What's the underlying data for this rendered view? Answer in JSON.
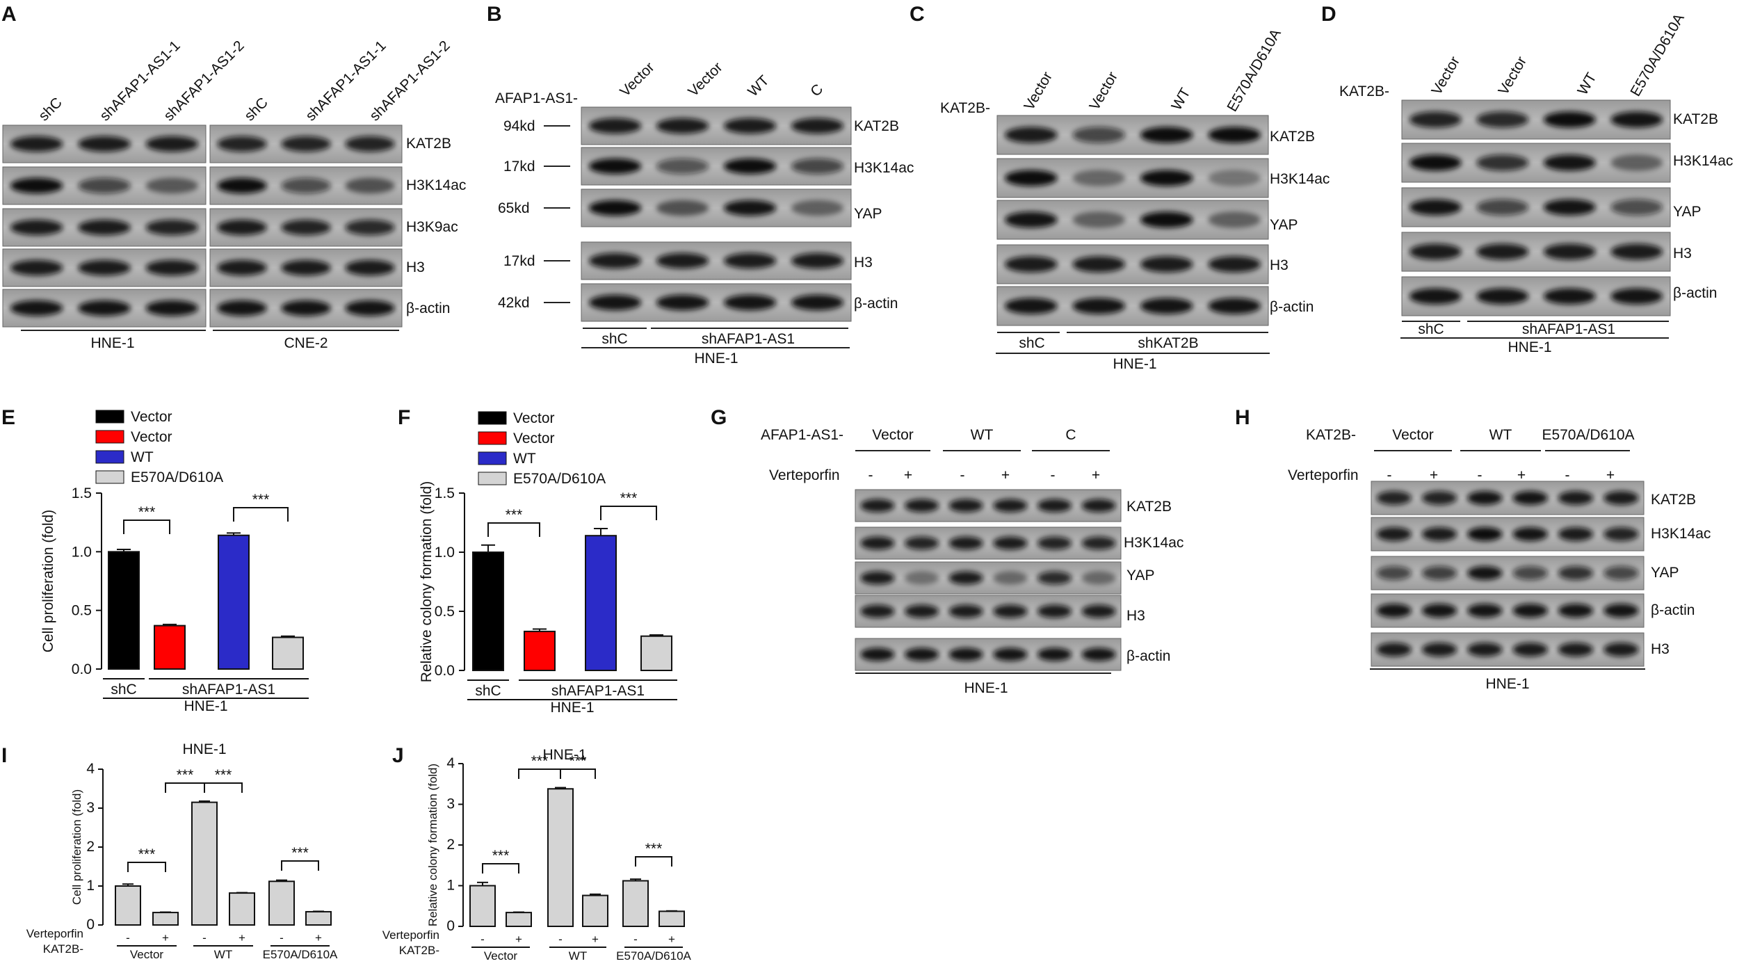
{
  "panel_letters": [
    "A",
    "B",
    "C",
    "D",
    "E",
    "F",
    "G",
    "H",
    "I",
    "J"
  ],
  "blots": {
    "A": {
      "lanes": [
        "shC",
        "shAFAP1-AS1-1",
        "shAFAP1-AS1-2",
        "shC",
        "shAFAP1-AS1-1",
        "shAFAP1-AS1-2"
      ],
      "rows": [
        {
          "label": "KAT2B",
          "intensity": [
            0.9,
            0.9,
            0.9,
            0.85,
            0.85,
            0.85
          ]
        },
        {
          "label": "H3K14ac",
          "intensity": [
            1.0,
            0.6,
            0.4,
            1.0,
            0.55,
            0.45
          ]
        },
        {
          "label": "H3K9ac",
          "intensity": [
            0.9,
            0.9,
            0.85,
            0.9,
            0.85,
            0.8
          ]
        },
        {
          "label": "H3",
          "intensity": [
            0.9,
            0.9,
            0.9,
            0.9,
            0.9,
            0.9
          ]
        },
        {
          "label": "β-actin",
          "intensity": [
            0.95,
            0.95,
            0.95,
            0.95,
            0.95,
            0.95
          ]
        }
      ],
      "groups": [
        "HNE-1",
        "CNE-2"
      ]
    },
    "B": {
      "prefix": "AFAP1-AS1-",
      "lanes": [
        "Vector",
        "Vector",
        "WT",
        "C"
      ],
      "markers": [
        "94kd",
        "17kd",
        "65kd",
        "17kd",
        "42kd"
      ],
      "rows": [
        {
          "label": "KAT2B",
          "intensity": [
            0.9,
            0.9,
            0.9,
            0.9
          ]
        },
        {
          "label": "H3K14ac",
          "intensity": [
            1.0,
            0.5,
            1.0,
            0.6
          ]
        },
        {
          "label": "YAP",
          "intensity": [
            1.0,
            0.45,
            0.95,
            0.35
          ]
        },
        {
          "label": "H3",
          "intensity": [
            0.9,
            0.9,
            0.9,
            0.9
          ]
        },
        {
          "label": "β-actin",
          "intensity": [
            0.95,
            0.95,
            0.95,
            0.95
          ]
        }
      ],
      "group_a": "shC",
      "group_b": "shAFAP1-AS1",
      "cell": "HNE-1"
    },
    "C": {
      "prefix": "KAT2B-",
      "lanes": [
        "Vector",
        "Vector",
        "WT",
        "E570A/D610A"
      ],
      "rows": [
        {
          "label": "KAT2B",
          "intensity": [
            0.9,
            0.6,
            1.0,
            1.0
          ]
        },
        {
          "label": "H3K14ac",
          "intensity": [
            1.0,
            0.3,
            1.0,
            0.2
          ]
        },
        {
          "label": "YAP",
          "intensity": [
            0.95,
            0.35,
            1.0,
            0.35
          ]
        },
        {
          "label": "H3",
          "intensity": [
            0.9,
            0.9,
            0.9,
            0.9
          ]
        },
        {
          "label": "β-actin",
          "intensity": [
            0.95,
            0.95,
            0.95,
            0.95
          ]
        }
      ],
      "group_a": "shC",
      "group_b": "shKAT2B",
      "cell": "HNE-1"
    },
    "D": {
      "prefix": "KAT2B-",
      "lanes": [
        "Vector",
        "Vector",
        "WT",
        "E570A/D610A"
      ],
      "rows": [
        {
          "label": "KAT2B",
          "intensity": [
            0.85,
            0.8,
            1.0,
            0.95
          ]
        },
        {
          "label": "H3K14ac",
          "intensity": [
            1.0,
            0.75,
            0.95,
            0.35
          ]
        },
        {
          "label": "YAP",
          "intensity": [
            0.95,
            0.6,
            0.95,
            0.55
          ]
        },
        {
          "label": "H3",
          "intensity": [
            0.9,
            0.9,
            0.9,
            0.9
          ]
        },
        {
          "label": "β-actin",
          "intensity": [
            0.95,
            0.95,
            0.95,
            0.95
          ]
        }
      ],
      "group_a": "shC",
      "group_b": "shAFAP1-AS1",
      "cell": "HNE-1"
    },
    "G": {
      "prefix": "AFAP1-AS1-",
      "groups": [
        "Vector",
        "WT",
        "C"
      ],
      "treatment_label": "Verteporfin",
      "signs": [
        "-",
        "+",
        "-",
        "+",
        "-",
        "+"
      ],
      "rows": [
        {
          "label": "KAT2B",
          "intensity": [
            0.9,
            0.9,
            0.9,
            0.9,
            0.9,
            0.9
          ]
        },
        {
          "label": "H3K14ac",
          "intensity": [
            0.9,
            0.85,
            0.9,
            0.9,
            0.85,
            0.85
          ]
        },
        {
          "label": "YAP",
          "intensity": [
            0.9,
            0.25,
            0.9,
            0.3,
            0.8,
            0.3
          ]
        },
        {
          "label": "H3",
          "intensity": [
            0.9,
            0.9,
            0.9,
            0.9,
            0.9,
            0.9
          ]
        },
        {
          "label": "β-actin",
          "intensity": [
            0.95,
            0.95,
            0.95,
            0.95,
            0.95,
            0.95
          ]
        }
      ],
      "cell": "HNE-1"
    },
    "H": {
      "prefix": "KAT2B-",
      "groups": [
        "Vector",
        "WT",
        "E570A/D610A"
      ],
      "treatment_label": "Verteporfin",
      "signs": [
        "-",
        "+",
        "-",
        "+",
        "-",
        "+"
      ],
      "rows": [
        {
          "label": "KAT2B",
          "intensity": [
            0.85,
            0.85,
            0.95,
            0.95,
            0.9,
            0.9
          ]
        },
        {
          "label": "H3K14ac",
          "intensity": [
            0.9,
            0.9,
            1.0,
            0.95,
            0.9,
            0.85
          ]
        },
        {
          "label": "YAP",
          "intensity": [
            0.6,
            0.65,
            0.95,
            0.6,
            0.75,
            0.6
          ]
        },
        {
          "label": "β-actin",
          "intensity": [
            0.95,
            0.95,
            0.95,
            0.95,
            0.95,
            0.95
          ]
        },
        {
          "label": "H3",
          "intensity": [
            0.9,
            0.9,
            0.9,
            0.9,
            0.9,
            0.9
          ]
        }
      ],
      "cell": "HNE-1"
    }
  },
  "chart_data": [
    {
      "panel": "E",
      "type": "bar",
      "series": [
        {
          "name": "Vector",
          "value": 1.0,
          "err": 0.02,
          "color": "#000000"
        },
        {
          "name": "Vector",
          "value": 0.37,
          "err": 0.01,
          "color": "#ff0000"
        },
        {
          "name": "WT",
          "value": 1.14,
          "err": 0.02,
          "color": "#2b2bc8"
        },
        {
          "name": "E570A/D610A",
          "value": 0.27,
          "err": 0.01,
          "color": "#d4d4d4"
        }
      ],
      "ylabel": "Cell proliferation (fold)",
      "ylim": [
        0,
        1.5
      ],
      "yticks": [
        "0.0",
        "0.5",
        "1.0",
        "1.5"
      ],
      "group_a": "shC",
      "group_b": "shAFAP1-AS1",
      "cell": "HNE-1",
      "significance": [
        "***",
        "***"
      ]
    },
    {
      "panel": "F",
      "type": "bar",
      "series": [
        {
          "name": "Vector",
          "value": 1.0,
          "err": 0.06,
          "color": "#000000"
        },
        {
          "name": "Vector",
          "value": 0.33,
          "err": 0.02,
          "color": "#ff0000"
        },
        {
          "name": "WT",
          "value": 1.14,
          "err": 0.06,
          "color": "#2b2bc8"
        },
        {
          "name": "E570A/D610A",
          "value": 0.29,
          "err": 0.01,
          "color": "#d4d4d4"
        }
      ],
      "ylabel": "Relative colony formation (fold)",
      "ylim": [
        0,
        1.5
      ],
      "yticks": [
        "0.0",
        "0.5",
        "1.0",
        "1.5"
      ],
      "group_a": "shC",
      "group_b": "shAFAP1-AS1",
      "cell": "HNE-1",
      "significance": [
        "***",
        "***"
      ]
    },
    {
      "panel": "I",
      "type": "bar",
      "title": "HNE-1",
      "values": [
        1.0,
        0.32,
        3.15,
        0.82,
        1.12,
        0.34
      ],
      "errors": [
        0.05,
        0.01,
        0.03,
        0.01,
        0.03,
        0.01
      ],
      "signs": [
        "-",
        "+",
        "-",
        "+",
        "-",
        "+"
      ],
      "groups": [
        "Vector",
        "WT",
        "E570A/D610A"
      ],
      "row_labels": [
        "Verteporfin",
        "KAT2B-"
      ],
      "ylabel": "Cell proliferation (fold)",
      "ylim": [
        0,
        4
      ],
      "yticks": [
        "0",
        "1",
        "2",
        "3",
        "4"
      ],
      "significance": [
        "***",
        "***",
        "***",
        "***"
      ],
      "color": "#d4d4d4"
    },
    {
      "panel": "J",
      "type": "bar",
      "title": "HNE-1",
      "values": [
        1.0,
        0.34,
        3.38,
        0.76,
        1.12,
        0.37
      ],
      "errors": [
        0.08,
        0.01,
        0.03,
        0.03,
        0.04,
        0.01
      ],
      "signs": [
        "-",
        "+",
        "-",
        "+",
        "-",
        "+"
      ],
      "groups": [
        "Vector",
        "WT",
        "E570A/D610A"
      ],
      "row_labels": [
        "Verteporfin",
        "KAT2B-"
      ],
      "ylabel": "Relative colony formation (fold)",
      "ylim": [
        0,
        4
      ],
      "yticks": [
        "0",
        "1",
        "2",
        "3",
        "4"
      ],
      "significance": [
        "***",
        "***",
        "***",
        "***"
      ],
      "color": "#d4d4d4"
    }
  ]
}
